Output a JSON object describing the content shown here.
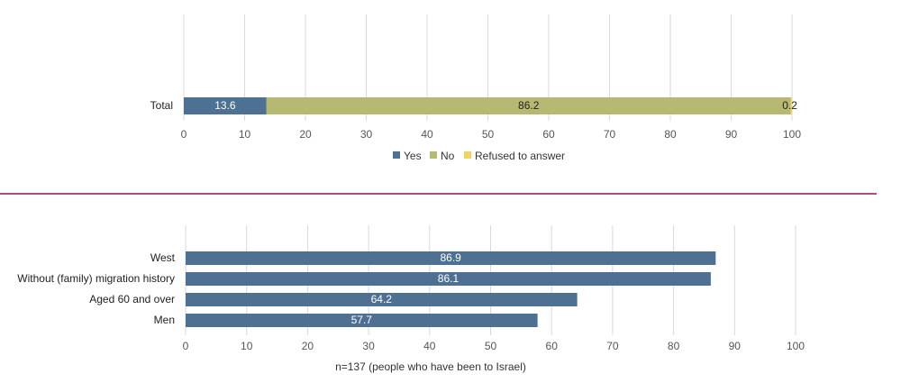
{
  "colors": {
    "yes": "#4e7193",
    "no": "#b7b872",
    "refused": "#f2d45c",
    "bar": "#4e7193",
    "grid": "#d9d9d9",
    "divider": "#a8507e"
  },
  "chart_data": [
    {
      "type": "bar",
      "orientation": "horizontal",
      "stacked": true,
      "categories": [
        "Total"
      ],
      "series": [
        {
          "name": "Yes",
          "values": [
            13.6
          ]
        },
        {
          "name": "No",
          "values": [
            86.2
          ]
        },
        {
          "name": "Refused to answer",
          "values": [
            0.2
          ]
        }
      ],
      "xlim": [
        0,
        100
      ],
      "xticks": [
        "0",
        "10",
        "20",
        "30",
        "40",
        "50",
        "60",
        "70",
        "80",
        "90",
        "100"
      ],
      "value_labels": [
        "13.6",
        "86.2",
        "0.2"
      ],
      "legend": [
        "Yes",
        "No",
        "Refused to answer"
      ],
      "legend_position": "bottom",
      "grid": true
    },
    {
      "type": "bar",
      "orientation": "horizontal",
      "categories": [
        "West",
        "Without (family) migration history",
        "Aged 60 and over",
        "Men"
      ],
      "values": [
        86.9,
        86.1,
        64.2,
        57.7
      ],
      "value_labels": [
        "86.9",
        "86.1",
        "64.2",
        "57.7"
      ],
      "xlim": [
        0,
        100
      ],
      "xticks": [
        "0",
        "10",
        "20",
        "30",
        "40",
        "50",
        "60",
        "70",
        "80",
        "90",
        "100"
      ],
      "note": "n=137 (people who have been to Israel)",
      "grid": true
    }
  ]
}
